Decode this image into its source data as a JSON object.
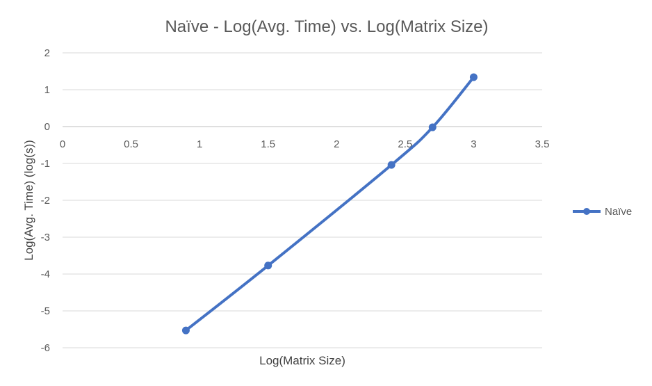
{
  "chart_data": {
    "type": "line",
    "title": "Naïve - Log(Avg. Time) vs. Log(Matrix Size)",
    "xlabel": "Log(Matrix Size)",
    "ylabel": "Log(Avg. Time) (log(s))",
    "xlim": [
      0,
      3.5
    ],
    "ylim": [
      -6,
      2
    ],
    "x_ticks": [
      "0",
      "0.5",
      "1",
      "1.5",
      "2",
      "2.5",
      "3",
      "3.5"
    ],
    "y_ticks": [
      "2",
      "1",
      "0",
      "-1",
      "-2",
      "-3",
      "-4",
      "-5",
      "-6"
    ],
    "grid": true,
    "legend_position": "right",
    "smooth": true,
    "series": [
      {
        "name": "Naïve",
        "color": "#4472c4",
        "x": [
          0.9,
          1.5,
          2.4,
          2.7,
          3.0
        ],
        "y": [
          -5.53,
          -3.77,
          -1.04,
          -0.02,
          1.34
        ]
      }
    ]
  }
}
